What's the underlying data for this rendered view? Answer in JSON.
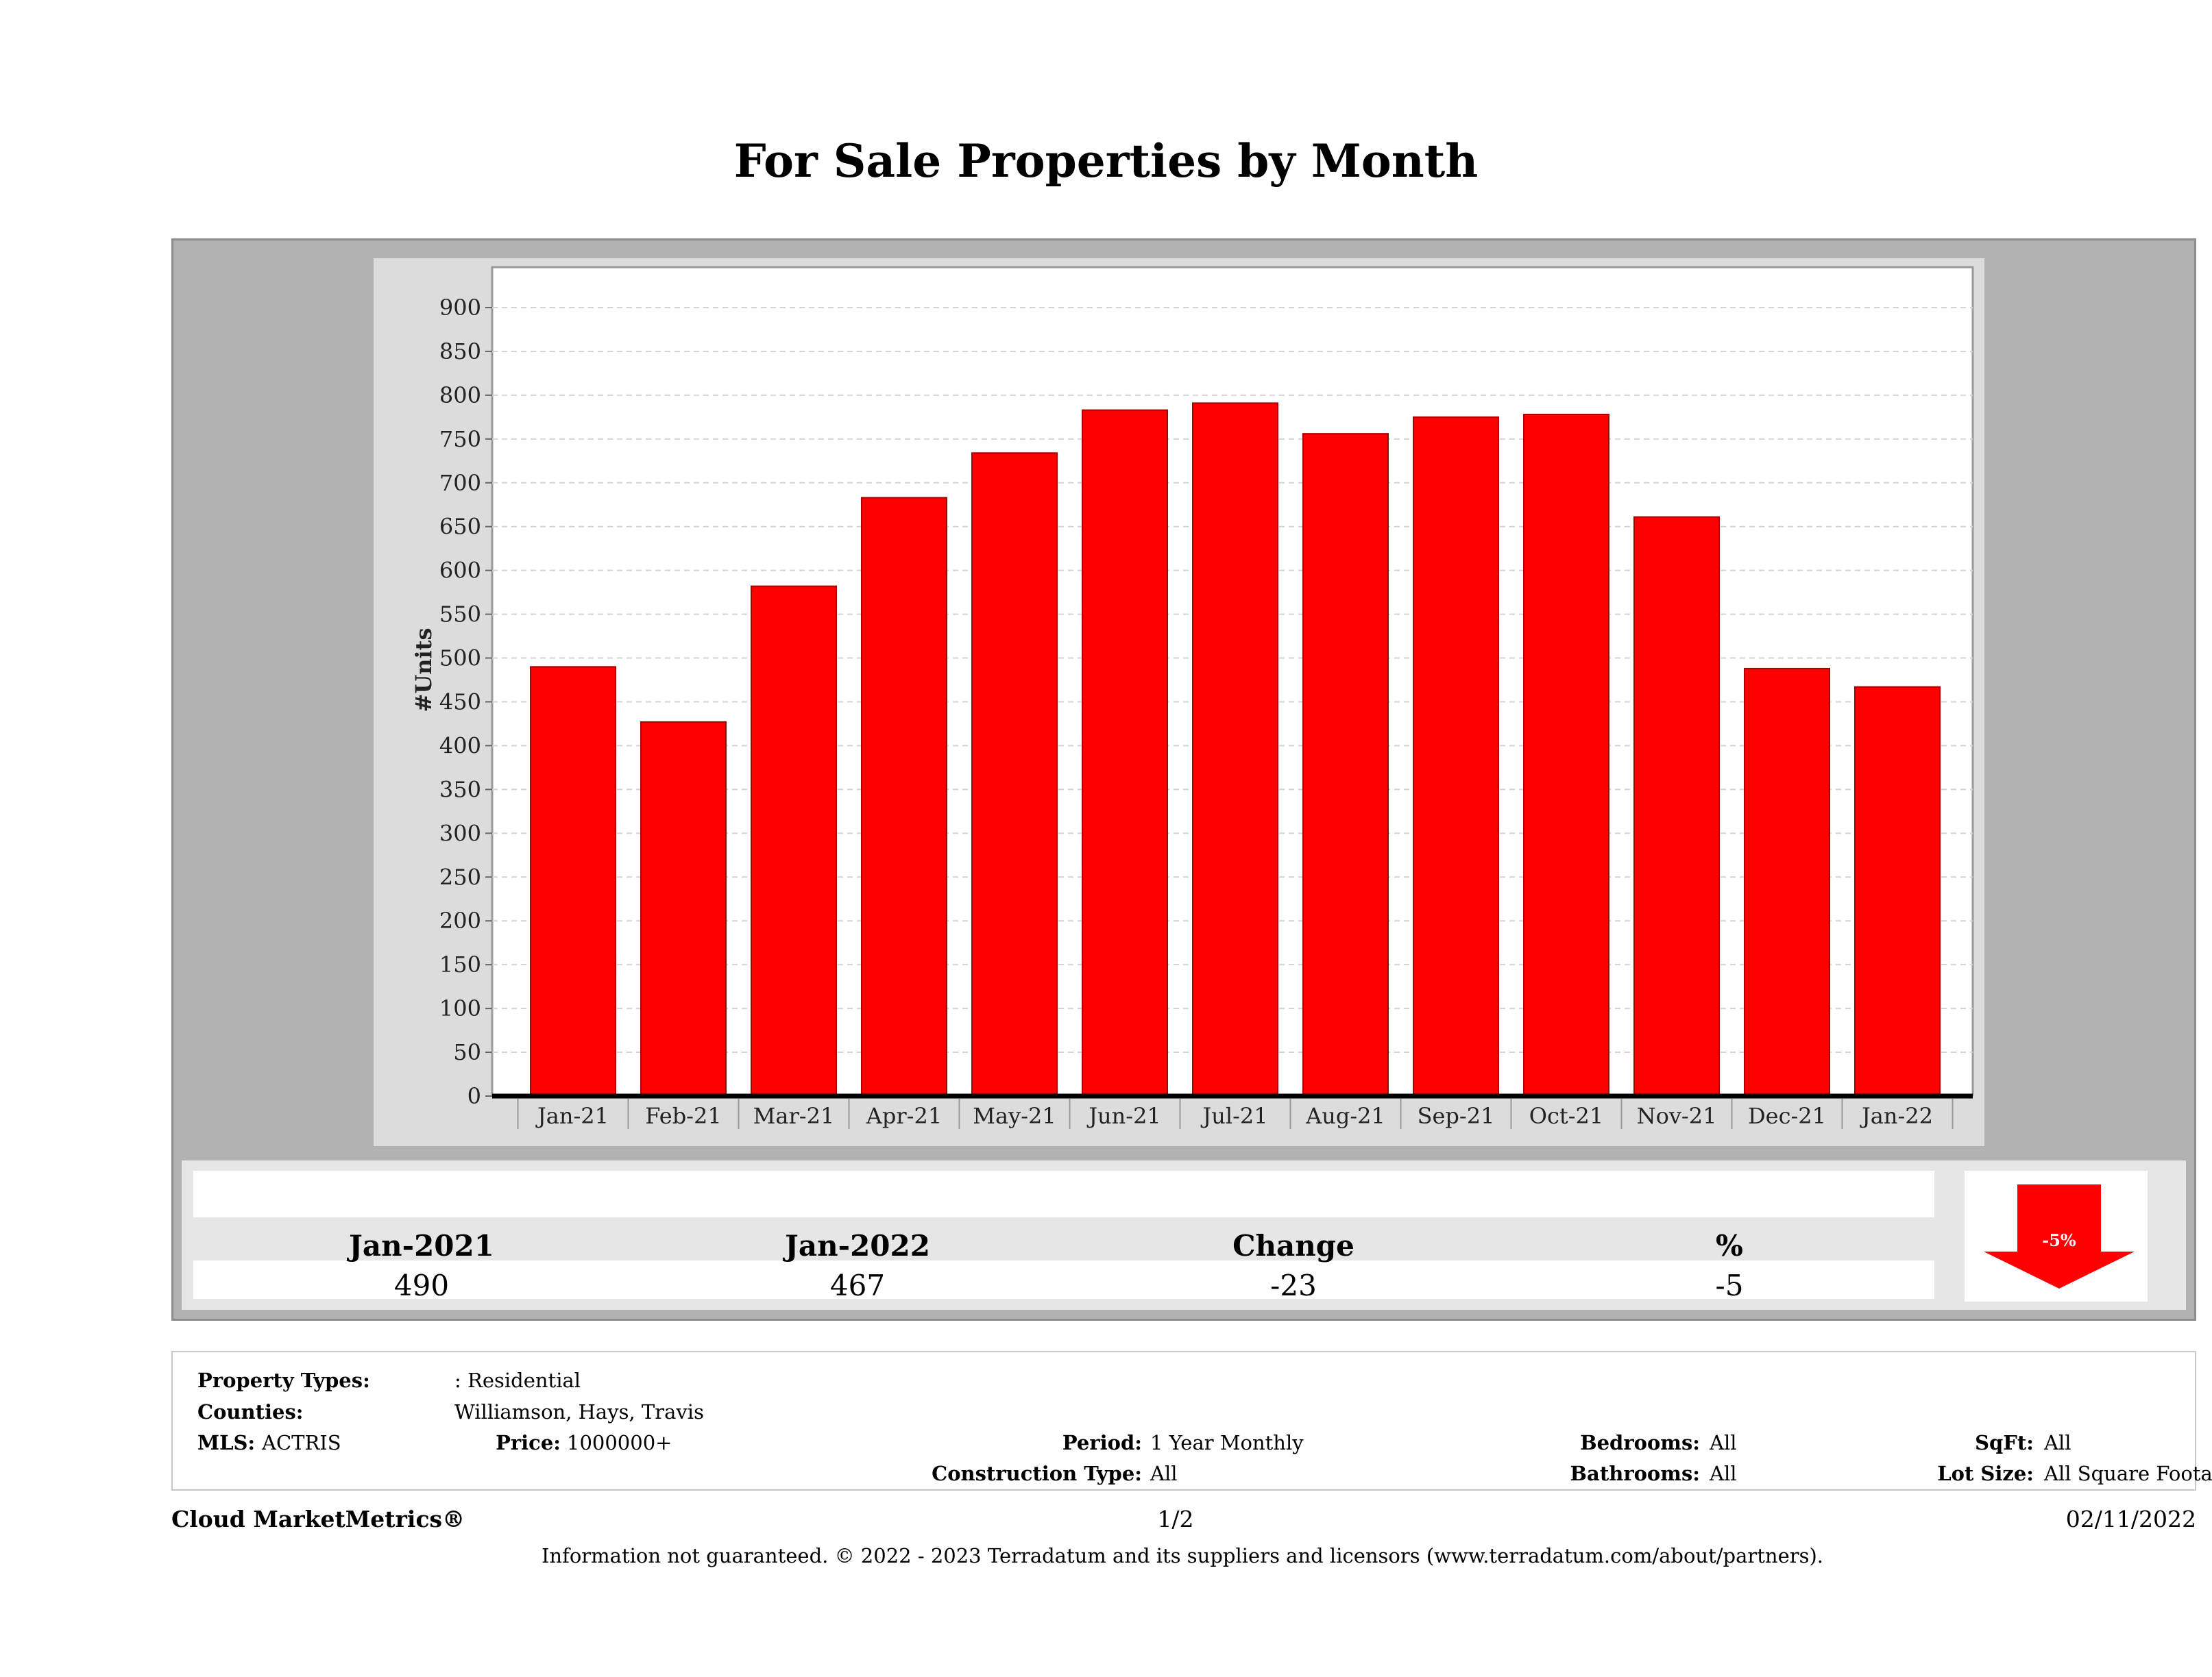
{
  "page": {
    "title": "For Sale Properties by Month"
  },
  "chart_data": {
    "type": "bar",
    "categories": [
      "Jan-21",
      "Feb-21",
      "Mar-21",
      "Apr-21",
      "May-21",
      "Jun-21",
      "Jul-21",
      "Aug-21",
      "Sep-21",
      "Oct-21",
      "Nov-21",
      "Dec-21",
      "Jan-22"
    ],
    "values": [
      490,
      427,
      582,
      683,
      734,
      783,
      791,
      756,
      775,
      778,
      661,
      488,
      467
    ],
    "ylabel": "#Units",
    "xlabel": "",
    "ylim": [
      0,
      900
    ],
    "yticks": [
      0,
      50,
      100,
      150,
      200,
      250,
      300,
      350,
      400,
      450,
      500,
      550,
      600,
      650,
      700,
      750,
      800,
      850,
      900
    ],
    "bar_color": "#ff0000",
    "grid": true
  },
  "summary": {
    "headers": [
      "Jan-2021",
      "Jan-2022",
      "Change",
      "%"
    ],
    "values": [
      "490",
      "467",
      "-23",
      "-5"
    ],
    "indicator": {
      "label": "-5%",
      "direction": "down",
      "color": "#ff0000"
    }
  },
  "filters": {
    "property_types_label": "Property Types:",
    "property_types_value": ": Residential",
    "counties_label": "Counties:",
    "counties_value": "Williamson, Hays, Travis",
    "mls_label": "MLS:",
    "mls_value": "ACTRIS",
    "price_label": "Price:",
    "price_value": "1000000+",
    "period_label": "Period:",
    "period_value": "1 Year Monthly",
    "construction_label": "Construction Type:",
    "construction_value": "All",
    "bedrooms_label": "Bedrooms:",
    "bedrooms_value": "All",
    "bathrooms_label": "Bathrooms:",
    "bathrooms_value": "All",
    "sqft_label": "SqFt:",
    "sqft_value": "All",
    "lotsize_label": "Lot Size:",
    "lotsize_value": "All Square Footage"
  },
  "footer": {
    "brand": "Cloud MarketMetrics®",
    "page": "1/2",
    "date": "02/11/2022",
    "disclaimer": "Information not guaranteed. © 2022 - 2023 Terradatum and its suppliers and licensors (www.terradatum.com/about/partners)."
  }
}
